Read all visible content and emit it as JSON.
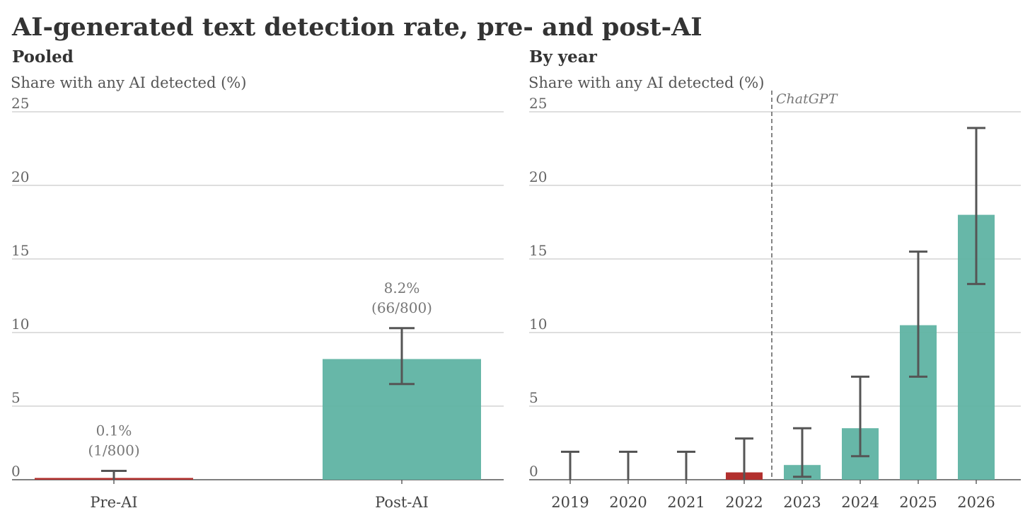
{
  "title": "AI-generated text detection rate, pre- and post-AI",
  "colors": {
    "pre_ai": "#b2302e",
    "post_ai": "#5fb3a3",
    "error_bar": "#555555",
    "grid": "#d4d4d4",
    "axis": "#555555"
  },
  "chart_data": [
    {
      "type": "bar",
      "title": "Pooled",
      "ylabel": "Share with any AI detected (%)",
      "ylim": [
        0,
        25
      ],
      "yticks": [
        0,
        5,
        10,
        15,
        20,
        25
      ],
      "grid": true,
      "categories": [
        "Pre-AI",
        "Post-AI"
      ],
      "values": [
        0.1,
        8.2
      ],
      "ci_low": [
        0.0,
        6.5
      ],
      "ci_high": [
        0.6,
        10.3
      ],
      "groups": [
        "pre",
        "post"
      ],
      "annotations": [
        {
          "line1": "0.1%",
          "line2": "(1/800)"
        },
        {
          "line1": "8.2%",
          "line2": "(66/800)"
        }
      ]
    },
    {
      "type": "bar",
      "title": "By year",
      "ylabel": "Share with any AI detected (%)",
      "ylim": [
        0,
        25
      ],
      "yticks": [
        0,
        5,
        10,
        15,
        20,
        25
      ],
      "grid": true,
      "categories": [
        "2019",
        "2020",
        "2021",
        "2022",
        "2023",
        "2024",
        "2025",
        "2026"
      ],
      "values": [
        0,
        0,
        0,
        0.5,
        1.0,
        3.5,
        10.5,
        18.0
      ],
      "ci_low": [
        0,
        0,
        0,
        0,
        0.2,
        1.6,
        7.0,
        13.3
      ],
      "ci_high": [
        1.9,
        1.9,
        1.9,
        2.8,
        3.5,
        7.0,
        15.5,
        23.9
      ],
      "groups": [
        "pre",
        "pre",
        "pre",
        "pre",
        "post",
        "post",
        "post",
        "post"
      ],
      "reference_line": {
        "label": "ChatGPT",
        "after_category": "2022"
      }
    }
  ]
}
